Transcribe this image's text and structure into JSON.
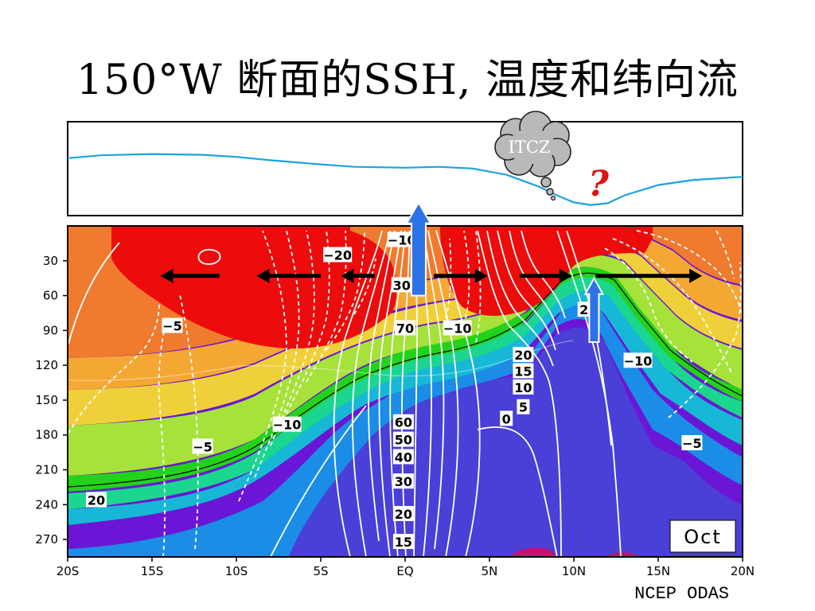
{
  "title": "150°W 断面的SSH, 温度和纬向流",
  "credit": "NCEP ODAS",
  "annotations": {
    "itcz": "ITCZ",
    "question_mark": "?",
    "month": "Oct"
  },
  "colors": {
    "ssh_line": "#1ba3e0",
    "upwelling_arrow": "#2d73e8",
    "zonal_arrow": "#000000",
    "contour": "#ffffff",
    "isotherm_20": "#000000",
    "question_mark": "#e01010",
    "temperature_bands": [
      "#ec0c0c",
      "#f07a2e",
      "#f5a733",
      "#f0d03a",
      "#a6e23a",
      "#22d31a",
      "#1bd68f",
      "#16b8d6",
      "#1b8de6",
      "#4a3fd6",
      "#6b16d6"
    ]
  },
  "chart_data": [
    {
      "type": "line",
      "name": "SSH",
      "x_unit": "latitude",
      "x": [
        -20,
        -18,
        -15,
        -12,
        -10,
        -8,
        -5,
        -3,
        0,
        2,
        4,
        6,
        8,
        9,
        10,
        11,
        12,
        13,
        15,
        17,
        20
      ],
      "y_relative": [
        0.35,
        0.42,
        0.45,
        0.43,
        0.38,
        0.3,
        0.2,
        0.14,
        0.12,
        0.14,
        0.1,
        -0.05,
        -0.35,
        -0.55,
        -0.72,
        -0.78,
        -0.74,
        -0.55,
        -0.3,
        -0.18,
        -0.1
      ],
      "axes_shown": false
    },
    {
      "type": "heatmap",
      "xlabel": "",
      "ylabel": "",
      "x_ticks": [
        "20S",
        "15S",
        "10S",
        "5S",
        "EQ",
        "5N",
        "10N",
        "15N",
        "20N"
      ],
      "x_range": [
        -20,
        20
      ],
      "y_ticks": [
        30,
        60,
        90,
        120,
        150,
        180,
        210,
        240,
        270
      ],
      "y_range": [
        285,
        0
      ],
      "y_unit": "depth (m)",
      "month": "Oct",
      "contour_labels": [
        {
          "text": "-10",
          "lat": -0.2,
          "depth": 12
        },
        {
          "text": "-20",
          "lat": -4.0,
          "depth": 25
        },
        {
          "text": "30",
          "lat": -0.2,
          "depth": 51
        },
        {
          "text": "70",
          "lat": 0.0,
          "depth": 88
        },
        {
          "text": "-10",
          "lat": 3.1,
          "depth": 88
        },
        {
          "text": "-5",
          "lat": -13.8,
          "depth": 86
        },
        {
          "text": "20",
          "lat": 7.0,
          "depth": 111
        },
        {
          "text": "15",
          "lat": 7.0,
          "depth": 125
        },
        {
          "text": "10",
          "lat": 7.0,
          "depth": 139
        },
        {
          "text": "5",
          "lat": 7.0,
          "depth": 156
        },
        {
          "text": "2",
          "lat": 10.6,
          "depth": 72
        },
        {
          "text": "-10",
          "lat": 13.8,
          "depth": 116
        },
        {
          "text": "-10",
          "lat": -7.0,
          "depth": 171
        },
        {
          "text": "60",
          "lat": -0.1,
          "depth": 169
        },
        {
          "text": "50",
          "lat": -0.1,
          "depth": 184
        },
        {
          "text": "40",
          "lat": -0.1,
          "depth": 199
        },
        {
          "text": "30",
          "lat": -0.1,
          "depth": 220
        },
        {
          "text": "20",
          "lat": -0.1,
          "depth": 248
        },
        {
          "text": "15",
          "lat": -0.1,
          "depth": 272
        },
        {
          "text": "0",
          "lat": 6.0,
          "depth": 166
        },
        {
          "text": "-5",
          "lat": -12.0,
          "depth": 190
        },
        {
          "text": "-5",
          "lat": 17.0,
          "depth": 187
        },
        {
          "text": "20",
          "lat": -18.3,
          "depth": 236
        }
      ],
      "zonal_flow_arrows": [
        {
          "from_lat": -11.0,
          "to_lat": -14.5,
          "depth": 43
        },
        {
          "from_lat": -5.0,
          "to_lat": -8.8,
          "depth": 43
        },
        {
          "from_lat": -1.8,
          "to_lat": -3.8,
          "depth": 43
        },
        {
          "from_lat": 1.7,
          "to_lat": 4.9,
          "depth": 43
        },
        {
          "from_lat": 6.8,
          "to_lat": 9.9,
          "depth": 43
        },
        {
          "from_lat": 11.3,
          "to_lat": 17.6,
          "depth": 43
        }
      ],
      "upwelling_arrows": [
        {
          "lat": 0.8,
          "from_depth": 60,
          "to_depth": -20
        },
        {
          "lat": 11.2,
          "from_depth": 100,
          "to_depth": 45
        }
      ]
    }
  ]
}
